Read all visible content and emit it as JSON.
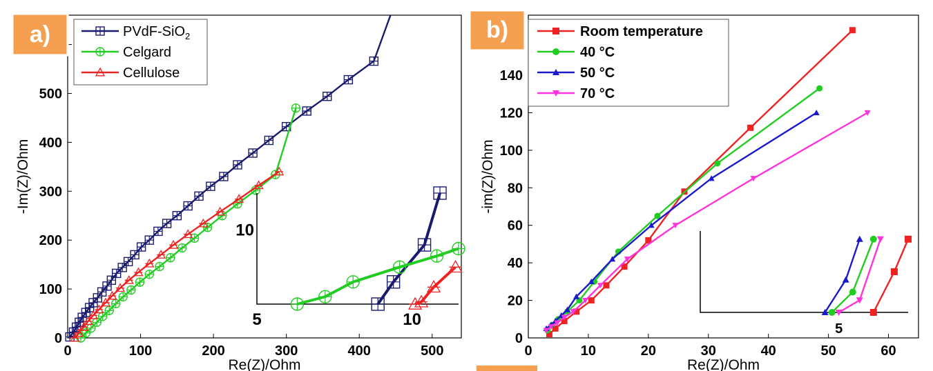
{
  "chart_data": [
    {
      "type": "line",
      "panel_label": "a)",
      "xlabel": "Re(Z)/Ohm",
      "ylabel": "-Im(Z)/Ohm",
      "xlim": [
        0,
        540
      ],
      "ylim": [
        0,
        660
      ],
      "xticks": [
        0,
        100,
        200,
        300,
        400,
        500
      ],
      "yticks": [
        0,
        100,
        200,
        300,
        400,
        500,
        600
      ],
      "legend_position": "top-left",
      "series": [
        {
          "name": "PVdF-SiO2",
          "color": "#1a1a6e",
          "marker": "square-plus",
          "x": [
            3,
            8,
            12,
            16,
            20,
            25,
            30,
            35,
            41,
            47,
            54,
            60,
            67,
            75,
            83,
            92,
            101,
            112,
            124,
            136,
            150,
            165,
            180,
            196,
            214,
            233,
            254,
            276,
            300,
            328,
            356,
            385,
            420,
            455
          ],
          "y": [
            2,
            12,
            22,
            32,
            42,
            52,
            62,
            72,
            82,
            94,
            106,
            118,
            132,
            144,
            156,
            170,
            186,
            200,
            218,
            234,
            250,
            270,
            290,
            310,
            330,
            354,
            378,
            404,
            432,
            464,
            494,
            528,
            566,
            710
          ]
        },
        {
          "name": "Celgard",
          "color": "#22cc22",
          "marker": "circle-plus",
          "x": [
            18,
            25,
            32,
            40,
            48,
            57,
            66,
            76,
            87,
            99,
            112,
            126,
            141,
            157,
            174,
            192,
            212,
            233,
            258,
            285,
            313
          ],
          "y": [
            0,
            10,
            20,
            32,
            44,
            56,
            70,
            84,
            98,
            114,
            130,
            146,
            164,
            184,
            204,
            226,
            250,
            274,
            302,
            334,
            470
          ]
        },
        {
          "name": "Cellulose",
          "color": "#ee2222",
          "marker": "triangle",
          "x": [
            10,
            15,
            22,
            28,
            35,
            43,
            52,
            61,
            72,
            84,
            97,
            112,
            128,
            145,
            165,
            186,
            209,
            235,
            262,
            290
          ],
          "y": [
            0,
            10,
            22,
            34,
            46,
            58,
            72,
            86,
            102,
            118,
            134,
            152,
            170,
            190,
            212,
            234,
            258,
            284,
            312,
            340
          ]
        }
      ],
      "inset": {
        "x_tick_labels": [
          "5",
          "10"
        ],
        "y_tick_labels": [
          "10"
        ],
        "xlim": [
          5,
          11.5
        ],
        "ylim": [
          0,
          15
        ],
        "series": [
          {
            "name": "PVdF-SiO2",
            "x": [
              8.9,
              9.4,
              10.4,
              10.9
            ],
            "y": [
              0,
              3,
              8,
              15
            ]
          },
          {
            "name": "Celgard",
            "x": [
              6.3,
              7.2,
              8.1,
              9.6,
              10.8,
              11.5
            ],
            "y": [
              0,
              1,
              3,
              5,
              6.5,
              7.5
            ]
          },
          {
            "name": "Cellulose",
            "x": [
              10.1,
              10.3,
              10.7,
              11.4
            ],
            "y": [
              0,
              0.3,
              2.3,
              5
            ]
          }
        ]
      }
    },
    {
      "type": "line",
      "panel_label": "b)",
      "xlabel": "Re(Z)/Ohm",
      "ylabel": "-im(Z)/Ohm",
      "xlim": [
        0,
        65
      ],
      "ylim": [
        0,
        172
      ],
      "xticks": [
        0,
        10,
        20,
        30,
        40,
        50,
        60
      ],
      "yticks": [
        0,
        20,
        40,
        60,
        80,
        100,
        120,
        140,
        160
      ],
      "legend_position": "top-left",
      "series": [
        {
          "name": "Room temperature",
          "color": "#ee2222",
          "marker": "square",
          "x": [
            3.5,
            4.5,
            6,
            8,
            10.5,
            13,
            16,
            20,
            26,
            37,
            54
          ],
          "y": [
            2,
            5,
            9,
            14,
            20,
            28,
            38,
            52,
            78,
            112,
            164
          ]
        },
        {
          "name": "40 °C",
          "color": "#22cc22",
          "marker": "circle",
          "x": [
            3.2,
            4,
            5,
            6.5,
            8.5,
            11,
            15,
            21.5,
            31.5,
            48.5
          ],
          "y": [
            4,
            7,
            10,
            14,
            20,
            30,
            46,
            65,
            93,
            133
          ]
        },
        {
          "name": "50 °C",
          "color": "#1a1acc",
          "marker": "triangle-up",
          "x": [
            3,
            3.8,
            4.5,
            5.5,
            6.5,
            8,
            10.5,
            14,
            20.5,
            30.5,
            48
          ],
          "y": [
            5,
            7,
            9,
            12,
            15,
            22,
            30,
            42,
            60,
            85,
            120
          ]
        },
        {
          "name": "70 °C",
          "color": "#ff33dd",
          "marker": "triangle-down",
          "x": [
            3,
            3.8,
            4.8,
            6,
            7.5,
            9.5,
            12,
            16.5,
            24.5,
            37.5,
            56.5
          ],
          "y": [
            4,
            6,
            8,
            11,
            14,
            20,
            28,
            42,
            60,
            85,
            120
          ]
        }
      ],
      "inset": {
        "x_tick_labels": [
          "5"
        ],
        "y_tick_labels": [],
        "xlim": [
          3,
          6
        ],
        "ylim": [
          0,
          20
        ],
        "series": [
          {
            "name": "50 °C",
            "x": [
              4.8,
              5.1,
              5.3
            ],
            "y": [
              0,
              8,
              18
            ]
          },
          {
            "name": "40 °C",
            "x": [
              4.9,
              5.2,
              5.5
            ],
            "y": [
              0,
              5,
              18
            ]
          },
          {
            "name": "70 °C",
            "x": [
              5.0,
              5.3,
              5.6
            ],
            "y": [
              0,
              3,
              18
            ]
          },
          {
            "name": "Room temperature",
            "x": [
              5.5,
              5.8,
              6.0
            ],
            "y": [
              0,
              10,
              18
            ]
          }
        ]
      }
    }
  ]
}
